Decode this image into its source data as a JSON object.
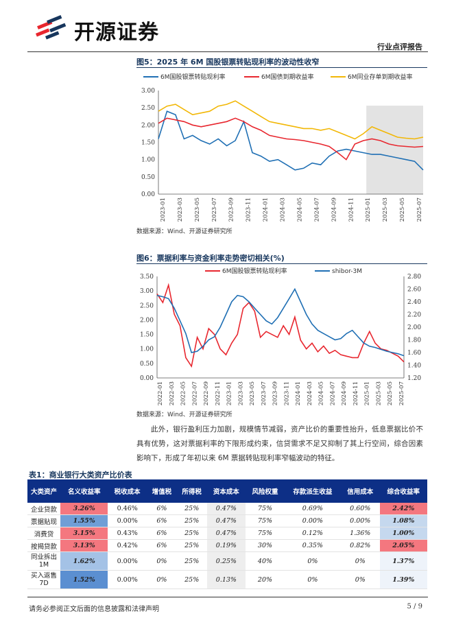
{
  "brand": {
    "name": "开源证券"
  },
  "header": {
    "report_type": "行业点评报告"
  },
  "figure5": {
    "title": "图5：2025 年 6M 国股银票转贴现利率的波动性收窄",
    "source": "数据来源：Wind、开源证券研究所",
    "chart_data": {
      "type": "line",
      "title": "图5：2025 年 6M 国股银票转贴现利率的波动性收窄",
      "ylim": [
        0,
        3
      ],
      "y_ticks": [
        "3.00",
        "2.50",
        "2.00",
        "1.50",
        "1.00",
        "0.50",
        "0.00"
      ],
      "x_ticks": [
        "2023-01",
        "2023-03",
        "2023-05",
        "2023-07",
        "2023-09",
        "2023-11",
        "2024-01",
        "2024-03",
        "2024-05",
        "2024-07",
        "2024-09",
        "2024-11",
        "2025-01",
        "2025-03",
        "2025-05",
        "2025-07"
      ],
      "shaded_region": [
        "2025-01",
        "2025-07"
      ],
      "series": [
        {
          "name": "6M国股银票转贴现利率",
          "color": "#1f6fb4",
          "values": [
            1.6,
            2.4,
            2.3,
            1.6,
            1.7,
            1.55,
            1.45,
            1.6,
            1.4,
            1.55,
            2.1,
            1.2,
            1.1,
            0.95,
            1.0,
            0.85,
            0.7,
            0.75,
            0.9,
            0.85,
            1.1,
            1.25,
            1.3,
            1.25,
            1.2,
            1.15,
            1.15,
            1.1,
            1.05,
            1.0,
            0.95,
            0.7
          ]
        },
        {
          "name": "6M国债到期收益率",
          "color": "#e8262e",
          "values": [
            2.05,
            2.2,
            2.15,
            2.1,
            2.0,
            1.95,
            2.0,
            2.05,
            2.1,
            2.2,
            2.1,
            1.95,
            1.85,
            1.7,
            1.65,
            1.6,
            1.58,
            1.55,
            1.5,
            1.45,
            1.38,
            1.2,
            1.0,
            1.45,
            1.55,
            1.6,
            1.55,
            1.45,
            1.4,
            1.38,
            1.36,
            1.38
          ]
        },
        {
          "name": "6M同业存单到期收益率",
          "color": "#f2b705",
          "values": [
            2.4,
            2.55,
            2.6,
            2.45,
            2.3,
            2.35,
            2.4,
            2.55,
            2.6,
            2.7,
            2.55,
            2.4,
            2.25,
            2.1,
            2.05,
            2.0,
            1.95,
            1.9,
            1.9,
            1.85,
            1.9,
            1.8,
            1.7,
            1.6,
            1.75,
            1.95,
            1.85,
            1.75,
            1.65,
            1.62,
            1.6,
            1.65
          ]
        }
      ]
    }
  },
  "figure6": {
    "title": "图6：票据利率与资金利率走势密切相关(%)",
    "source": "数据来源：Wind、开源证券研究所",
    "chart_data": {
      "type": "line",
      "title": "图6：票据利率与资金利率走势密切相关(%)",
      "ylim_left": [
        0,
        3.5
      ],
      "ylim_right": [
        1.2,
        2.8
      ],
      "y_ticks_left": [
        "3.50",
        "3.00",
        "2.50",
        "2.00",
        "1.50",
        "1.00",
        "0.50",
        "0.00"
      ],
      "y_ticks_right": [
        "2.80",
        "2.60",
        "2.40",
        "2.20",
        "2.00",
        "1.80",
        "1.60",
        "1.40",
        "1.20"
      ],
      "x_ticks": [
        "2022-01",
        "2022-03",
        "2022-05",
        "2022-07",
        "2022-09",
        "2022-11",
        "2023-01",
        "2023-03",
        "2023-05",
        "2023-07",
        "2023-09",
        "2023-11",
        "2024-01",
        "2024-03",
        "2024-05",
        "2024-07",
        "2024-09",
        "2024-11",
        "2025-01",
        "2025-03",
        "2025-05",
        "2025-07"
      ],
      "series": [
        {
          "name": "6M国股银票转贴现利率",
          "axis": "left",
          "color": "#e8262e",
          "values": [
            2.9,
            2.6,
            3.2,
            2.2,
            1.8,
            0.7,
            0.4,
            1.4,
            1.0,
            1.7,
            1.5,
            1.0,
            0.8,
            1.2,
            1.5,
            2.4,
            2.6,
            2.3,
            1.4,
            1.6,
            1.5,
            1.4,
            1.8,
            1.5,
            2.1,
            1.3,
            1.0,
            1.2,
            0.9,
            1.1,
            0.85,
            0.95,
            0.8,
            0.75,
            0.7,
            0.7,
            1.2,
            1.6,
            1.2,
            1.0,
            0.95,
            0.85,
            0.75,
            0.55
          ]
        },
        {
          "name": "shibor-3M",
          "axis": "right",
          "color": "#1f6fb4",
          "values": [
            2.5,
            2.48,
            2.45,
            2.3,
            2.1,
            1.9,
            1.6,
            1.62,
            1.7,
            1.8,
            1.85,
            2.0,
            2.2,
            2.4,
            2.5,
            2.48,
            2.4,
            2.3,
            2.2,
            2.1,
            2.05,
            2.15,
            2.3,
            2.45,
            2.6,
            2.4,
            2.2,
            2.05,
            1.95,
            1.9,
            1.85,
            1.8,
            1.82,
            1.9,
            1.95,
            1.85,
            1.75,
            1.7,
            1.68,
            1.65,
            1.62,
            1.6,
            1.58,
            1.55
          ]
        }
      ]
    }
  },
  "paragraph": "此外，银行盈利压力加剧，规模情节减弱，资产比价的重要性抬升，低息票据比价不具有优势，这对票据利率的下限形成约束，信贷需求不足又抑制了其上行空间，综合因素影响下，形成了年初以来 6M 票据转贴现利率窄幅波动的特征。",
  "table1": {
    "title": "表1：商业银行大类资产比价表",
    "headers": [
      "大类资产",
      "名义收益率",
      "税收成本",
      "增值税",
      "所得税",
      "资本成本",
      "风险权重",
      "存款派生收益",
      "信用成本",
      "综合收益率"
    ],
    "rows": [
      {
        "asset": "企业贷款",
        "nominal": "3.26%",
        "tax_cost": "0.46%",
        "vat": "6%",
        "income_tax": "25%",
        "capital": "0.47%",
        "risk_weight": "75%",
        "deposit": "0.69%",
        "credit": "0.60%",
        "total": "2.42%",
        "nominal_color": "#f4777f",
        "total_color": "#f4777f"
      },
      {
        "asset": "票据贴现",
        "nominal": "1.55%",
        "tax_cost": "0.00%",
        "vat": "6%",
        "income_tax": "25%",
        "capital": "0.47%",
        "risk_weight": "75%",
        "deposit": "0.00%",
        "credit": "0.00%",
        "total": "1.08%",
        "nominal_color": "#6f9ed6",
        "total_color": "#c5d8ee"
      },
      {
        "asset": "消费贷",
        "nominal": "3.15%",
        "tax_cost": "0.43%",
        "vat": "6%",
        "income_tax": "25%",
        "capital": "0.47%",
        "risk_weight": "75%",
        "deposit": "0.12%",
        "credit": "1.36%",
        "total": "1.00%",
        "nominal_color": "#f4777f",
        "total_color": "#c5d8ee"
      },
      {
        "asset": "按揭贷款",
        "nominal": "3.13%",
        "tax_cost": "0.42%",
        "vat": "6%",
        "income_tax": "25%",
        "capital": "0.19%",
        "risk_weight": "30%",
        "deposit": "0.35%",
        "credit": "0.82%",
        "total": "2.05%",
        "nominal_color": "#f4777f",
        "total_color": "#f4777f"
      },
      {
        "asset": "同业拆出1M",
        "nominal": "1.62%",
        "tax_cost": "0.00%",
        "vat": "0%",
        "income_tax": "25%",
        "capital": "0.25%",
        "risk_weight": "40%",
        "deposit": "0%",
        "credit": "0%",
        "total": "1.37%",
        "nominal_color": "#a4c2e6",
        "total_color": "#eef3fa"
      },
      {
        "asset": "买入返售7D",
        "nominal": "1.52%",
        "tax_cost": "0.00%",
        "vat": "0%",
        "income_tax": "25%",
        "capital": "0.13%",
        "risk_weight": "20%",
        "deposit": "0%",
        "credit": "0%",
        "total": "1.39%",
        "nominal_color": "#5b8fd1",
        "total_color": "#eef3fa"
      }
    ]
  },
  "footer": {
    "disclaimer": "请务必参阅正文后面的信息披露和法律声明",
    "page": "5 / 9"
  }
}
